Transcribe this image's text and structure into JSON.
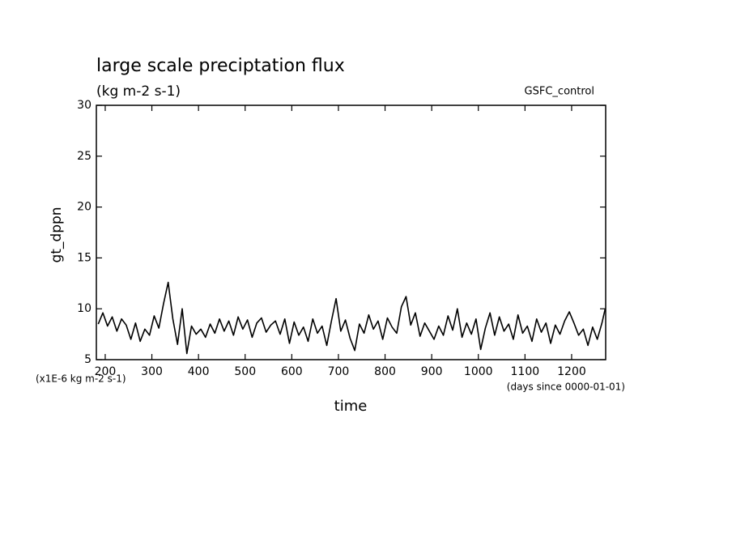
{
  "chart_data": {
    "type": "line",
    "title": "large scale preciptation flux",
    "subtitle": "(kg m-2 s-1)",
    "annotation": "GSFC_control",
    "y_label": "gt_dppn",
    "x_label": "time",
    "y_units": "(x1E-6 kg m-2 s-1)",
    "x_units": "(days since 0000-01-01)",
    "xlim": [
      181,
      1273
    ],
    "ylim": [
      5,
      30
    ],
    "xticks": [
      200,
      300,
      400,
      500,
      600,
      700,
      800,
      900,
      1000,
      1100,
      1200
    ],
    "yticks": [
      5,
      10,
      15,
      20,
      25,
      30
    ],
    "series": [
      {
        "color": "#000000",
        "x": [
          185,
          195,
          205,
          215,
          225,
          235,
          245,
          255,
          265,
          275,
          285,
          295,
          305,
          315,
          325,
          335,
          345,
          355,
          365,
          375,
          385,
          395,
          405,
          415,
          425,
          435,
          445,
          455,
          465,
          475,
          485,
          495,
          505,
          515,
          525,
          535,
          545,
          555,
          565,
          575,
          585,
          595,
          605,
          615,
          625,
          635,
          645,
          655,
          665,
          675,
          685,
          695,
          705,
          715,
          725,
          735,
          745,
          755,
          765,
          775,
          785,
          795,
          805,
          815,
          825,
          835,
          845,
          855,
          865,
          875,
          885,
          895,
          905,
          915,
          925,
          935,
          945,
          955,
          965,
          975,
          985,
          995,
          1005,
          1015,
          1025,
          1035,
          1045,
          1055,
          1065,
          1075,
          1085,
          1095,
          1105,
          1115,
          1125,
          1135,
          1145,
          1155,
          1165,
          1175,
          1185,
          1195,
          1205,
          1215,
          1225,
          1235,
          1245,
          1255,
          1265,
          1272
        ],
        "values": [
          8.5,
          9.6,
          8.3,
          9.2,
          7.8,
          9.0,
          8.4,
          7.0,
          8.6,
          6.8,
          8.0,
          7.4,
          9.3,
          8.1,
          10.5,
          12.6,
          9.0,
          6.5,
          10.0,
          5.6,
          8.3,
          7.5,
          8.0,
          7.2,
          8.5,
          7.6,
          9.0,
          7.8,
          8.8,
          7.4,
          9.2,
          8.0,
          8.9,
          7.2,
          8.6,
          9.1,
          7.7,
          8.4,
          8.8,
          7.5,
          9.0,
          6.6,
          8.7,
          7.4,
          8.2,
          6.8,
          9.0,
          7.6,
          8.3,
          6.4,
          8.8,
          11.0,
          7.8,
          8.9,
          7.1,
          5.9,
          8.5,
          7.6,
          9.4,
          8.0,
          8.8,
          7.0,
          9.1,
          8.2,
          7.6,
          10.2,
          11.2,
          8.4,
          9.6,
          7.3,
          8.6,
          7.8,
          7.0,
          8.3,
          7.4,
          9.3,
          7.9,
          10.0,
          7.2,
          8.6,
          7.5,
          9.0,
          6.0,
          8.1,
          9.6,
          7.4,
          9.2,
          7.8,
          8.5,
          7.0,
          9.4,
          7.6,
          8.3,
          6.8,
          9.0,
          7.7,
          8.6,
          6.6,
          8.4,
          7.5,
          8.8,
          9.7,
          8.6,
          7.4,
          8.0,
          6.4,
          8.2,
          7.0,
          8.6,
          10.0
        ]
      }
    ]
  }
}
